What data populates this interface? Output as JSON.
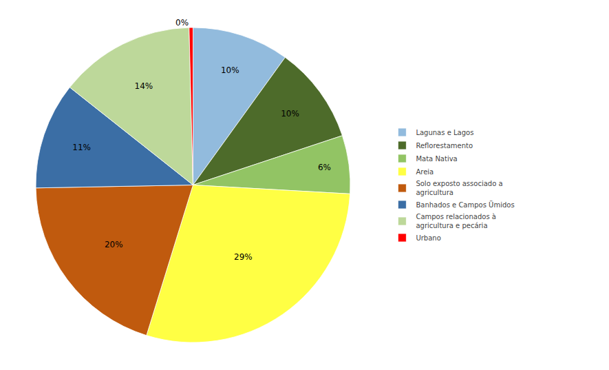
{
  "chart_data": {
    "type": "pie",
    "categories": [
      "Lagunas e Lagos",
      "Reflorestamento",
      "Mata Nativa",
      "Areia",
      "Solo exposto associado a\nagricultura",
      "Banhados e Campos Ümidos",
      "Campos relacionados à\nagricultura e pecária",
      "Urbano"
    ],
    "values": [
      10,
      10,
      6,
      29,
      20,
      11,
      14,
      0.4
    ],
    "value_labels": [
      "10%",
      "10%",
      "6%",
      "29%",
      "20%",
      "11%",
      "14%",
      "0%"
    ],
    "colors": [
      "#92BBDD",
      "#4D6B2A",
      "#92C464",
      "#FFFF44",
      "#C05A0E",
      "#3B6EA5",
      "#BDD89A",
      "#FF0000"
    ],
    "data_labels": true,
    "legend": "right"
  }
}
